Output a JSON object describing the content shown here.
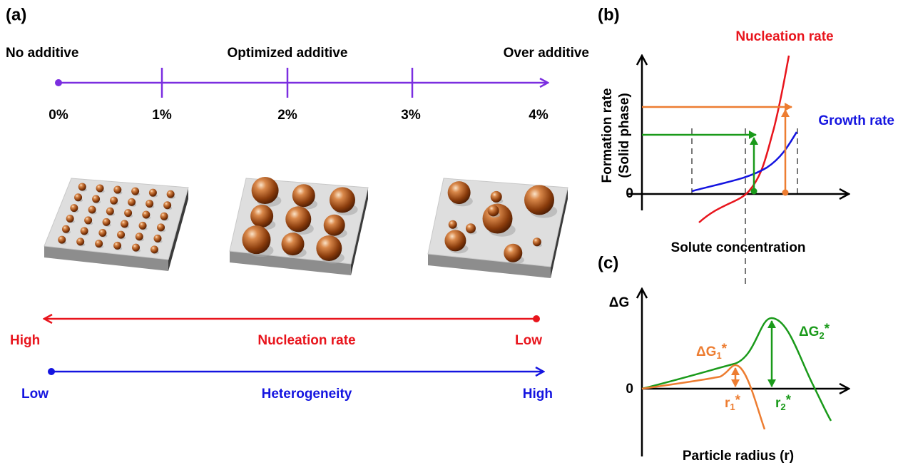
{
  "panel_a": {
    "label": "(a)",
    "scale_top_labels": [
      "No additive",
      "Optimized additive",
      "Over additive"
    ],
    "scale_ticks": [
      "0%",
      "1%",
      "2%",
      "3%",
      "4%"
    ],
    "nucleation": {
      "left": "High",
      "title": "Nucleation rate",
      "right": "Low"
    },
    "heterogeneity": {
      "left": "Low",
      "title": "Heterogeneity",
      "right": "High"
    }
  },
  "panel_b": {
    "label": "(b)",
    "y_label_1": "Formation rate",
    "y_label_2": "(Solid phase)",
    "zero": "0",
    "x_label": "Solute concentration",
    "nucleation_curve": "Nucleation rate",
    "growth_curve": "Growth rate"
  },
  "panel_c": {
    "label": "(c)",
    "y_label": "ΔG",
    "zero": "0",
    "x_label": "Particle radius (r)",
    "barrier_1": {
      "base": "ΔG",
      "sub": "1",
      "sup": "*"
    },
    "barrier_2": {
      "base": "ΔG",
      "sub": "2",
      "sup": "*"
    },
    "radius_1": {
      "base": "r",
      "sub": "1",
      "sup": "*"
    },
    "radius_2": {
      "base": "r",
      "sub": "2",
      "sup": "*"
    }
  }
}
